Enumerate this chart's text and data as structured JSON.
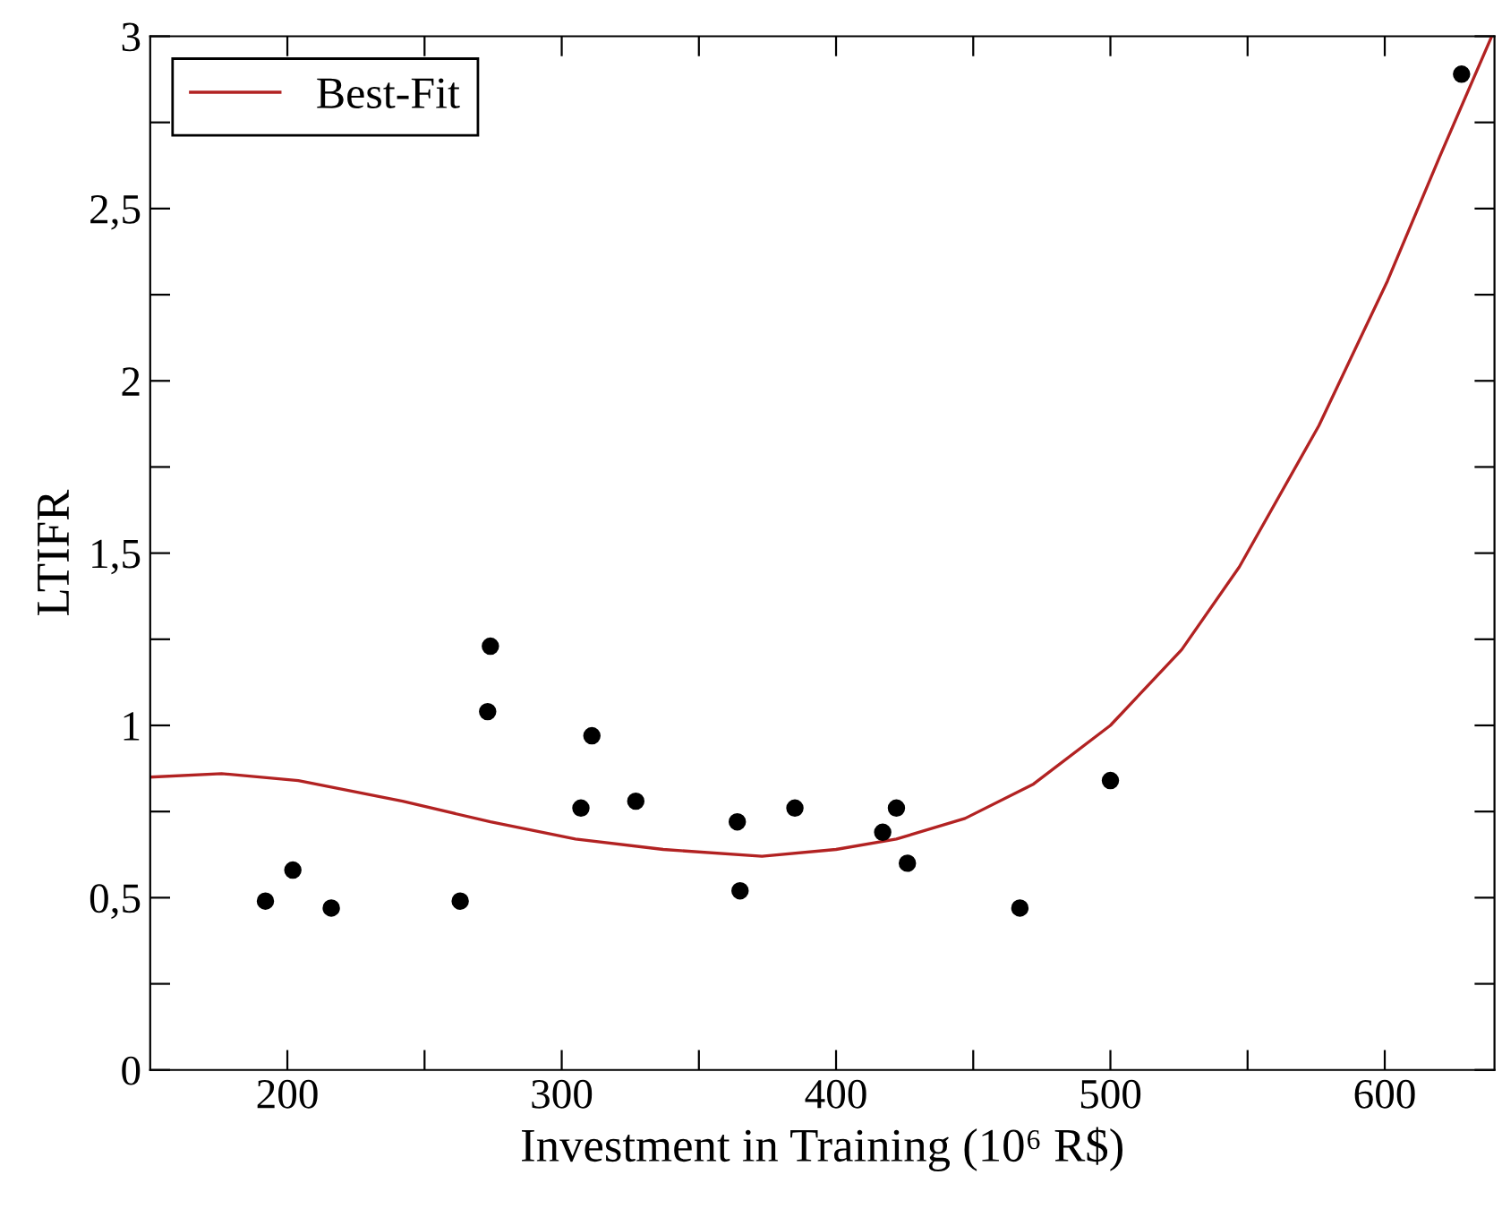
{
  "chart_data": {
    "type": "scatter",
    "xlabel": "Investment in Training (10⁶ R$)",
    "ylabel": "LTIFR",
    "xlim": [
      150,
      640
    ],
    "ylim": [
      0,
      3
    ],
    "xticks": [
      200,
      {
        "value": 250,
        "label": null
      },
      300,
      {
        "value": 350,
        "label": null
      },
      400,
      {
        "value": 450,
        "label": null
      },
      500,
      {
        "value": 550,
        "label": null
      },
      600
    ],
    "yticks": [
      0,
      {
        "value": 0.25,
        "label": null
      },
      {
        "value": 0.5,
        "label": "0,5"
      },
      {
        "value": 0.75,
        "label": null
      },
      1,
      {
        "value": 1.25,
        "label": null
      },
      {
        "value": 1.5,
        "label": "1,5"
      },
      {
        "value": 1.75,
        "label": null
      },
      2,
      {
        "value": 2.25,
        "label": null
      },
      {
        "value": 2.5,
        "label": "2,5"
      },
      {
        "value": 2.75,
        "label": null
      },
      3
    ],
    "grid": false,
    "legend": "top left",
    "series": [
      {
        "color": "#000000",
        "marker": "circle",
        "x": [
          192,
          202,
          216,
          263,
          274,
          273,
          307,
          311,
          327,
          364,
          365,
          385,
          417,
          422,
          426,
          467,
          500,
          628
        ],
        "values": [
          0.49,
          0.58,
          0.47,
          0.49,
          1.23,
          1.04,
          0.76,
          0.97,
          0.78,
          0.72,
          0.52,
          0.76,
          0.69,
          0.76,
          0.6,
          0.47,
          0.84,
          2.89
        ]
      },
      {
        "type": "line",
        "name": "Best-Fit",
        "color": "#b22222",
        "marker": "none",
        "line_style": "solid",
        "x": [
          150,
          176,
          204,
          242,
          274,
          305,
          337,
          373,
          400,
          422,
          447,
          472,
          500,
          526,
          547,
          576,
          601,
          620,
          639
        ],
        "values": [
          0.85,
          0.86,
          0.84,
          0.78,
          0.72,
          0.67,
          0.64,
          0.62,
          0.64,
          0.67,
          0.73,
          0.83,
          1.0,
          1.22,
          1.46,
          1.87,
          2.29,
          2.65,
          3.0
        ]
      }
    ]
  }
}
